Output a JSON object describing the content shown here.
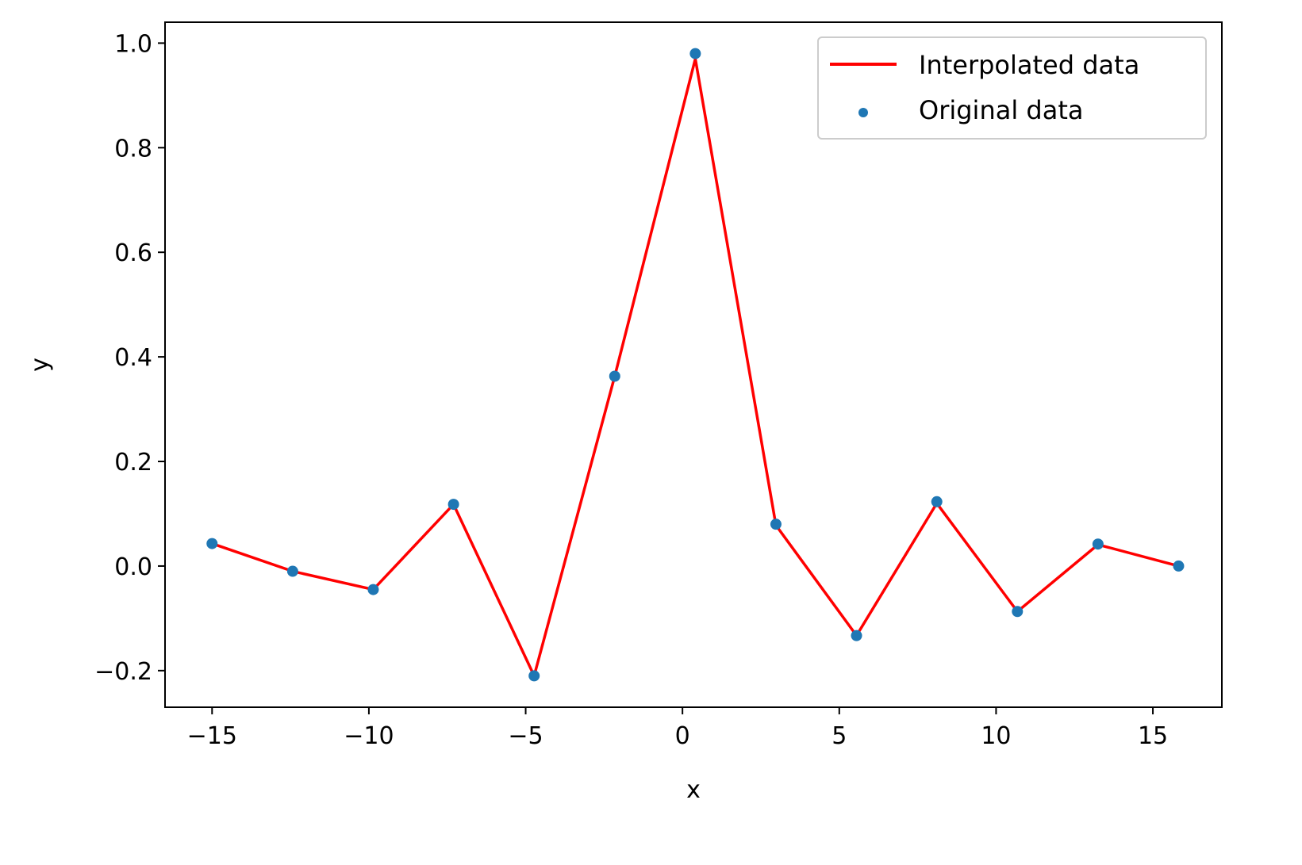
{
  "chart_data": {
    "type": "line",
    "title": "",
    "xlabel": "x",
    "ylabel": "y",
    "xlim": [
      -16.5,
      17.2
    ],
    "ylim": [
      -0.27,
      1.04
    ],
    "xticks": [
      -15,
      -10,
      -5,
      0,
      5,
      10,
      15
    ],
    "xtick_labels": [
      "−15",
      "−10",
      "−5",
      "0",
      "5",
      "10",
      "15"
    ],
    "yticks": [
      -0.2,
      0.0,
      0.2,
      0.4,
      0.6,
      0.8,
      1.0
    ],
    "ytick_labels": [
      "−0.2",
      "0.0",
      "0.2",
      "0.4",
      "0.6",
      "0.8",
      "1.0"
    ],
    "grid": false,
    "legend_position": "top-right",
    "series": [
      {
        "name": "Interpolated data",
        "kind": "line",
        "color": "#ff0000",
        "x": [
          -15.0,
          -12.43,
          -9.86,
          -7.3,
          -4.73,
          -2.16,
          0.41,
          2.98,
          5.55,
          8.11,
          10.68,
          13.25,
          15.82
        ],
        "y": [
          0.043,
          -0.01,
          -0.045,
          0.118,
          -0.21,
          0.363,
          0.97,
          0.078,
          -0.133,
          0.12,
          -0.087,
          0.041,
          0.0
        ]
      },
      {
        "name": "Original data",
        "kind": "scatter",
        "color": "#1f77b4",
        "x": [
          -15.0,
          -12.43,
          -9.86,
          -7.3,
          -4.73,
          -2.16,
          0.41,
          2.98,
          5.55,
          8.11,
          10.68,
          13.25,
          15.82
        ],
        "y": [
          0.043,
          -0.01,
          -0.045,
          0.118,
          -0.21,
          0.363,
          0.98,
          0.08,
          -0.133,
          0.123,
          -0.087,
          0.042,
          0.0
        ]
      }
    ]
  }
}
